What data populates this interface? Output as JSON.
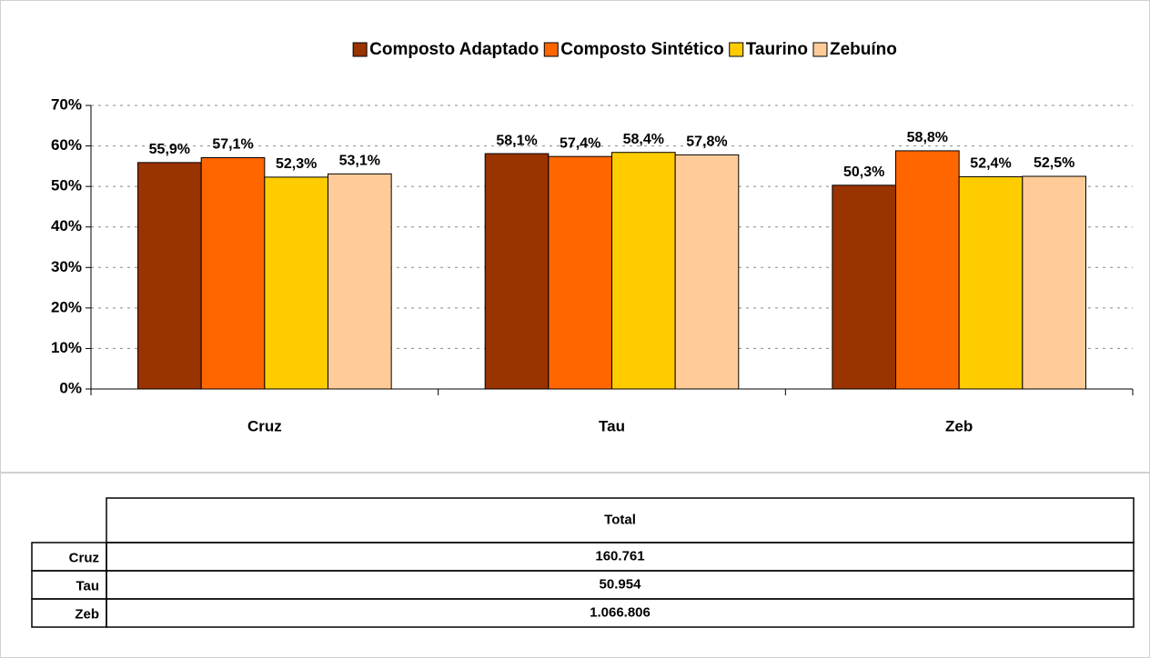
{
  "chart_data": {
    "type": "bar",
    "categories": [
      "Cruz",
      "Tau",
      "Zeb"
    ],
    "series": [
      {
        "name": "Composto Adaptado",
        "color": "#993300",
        "values": [
          55.9,
          58.1,
          50.3
        ],
        "value_labels": [
          "55,9%",
          "58,1%",
          "50,3%"
        ]
      },
      {
        "name": "Composto Sintético",
        "color": "#ff6600",
        "values": [
          57.1,
          57.4,
          58.8
        ],
        "value_labels": [
          "57,1%",
          "57,4%",
          "58,8%"
        ]
      },
      {
        "name": "Taurino",
        "color": "#ffcc00",
        "values": [
          52.3,
          58.4,
          52.4
        ],
        "value_labels": [
          "52,3%",
          "58,4%",
          "52,4%"
        ]
      },
      {
        "name": "Zebuíno",
        "color": "#ffcc99",
        "values": [
          53.1,
          57.8,
          52.5
        ],
        "value_labels": [
          "53,1%",
          "57,8%",
          "52,5%"
        ]
      }
    ],
    "ylim": [
      0,
      70
    ],
    "yticks": [
      {
        "value": 0,
        "label": "0%"
      },
      {
        "value": 10,
        "label": "10%"
      },
      {
        "value": 20,
        "label": "20%"
      },
      {
        "value": 30,
        "label": "30%"
      },
      {
        "value": 40,
        "label": "40%"
      },
      {
        "value": 50,
        "label": "50%"
      },
      {
        "value": 60,
        "label": "60%"
      },
      {
        "value": 70,
        "label": "70%"
      }
    ],
    "grid": true,
    "legend": "top"
  },
  "table": {
    "header": "Total",
    "rows": [
      [
        "Cruz",
        "160.761"
      ],
      [
        "Tau",
        "50.954"
      ],
      [
        "Zeb",
        "1.066.806"
      ]
    ]
  }
}
